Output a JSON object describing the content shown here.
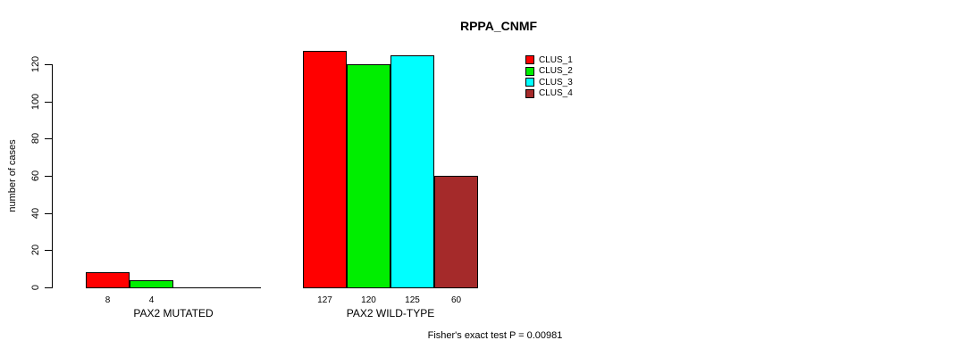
{
  "chart_data": {
    "type": "bar",
    "title": "RPPA_CNMF",
    "ylabel": "number of cases",
    "xlabel": "",
    "ylim": [
      0,
      120
    ],
    "yticks": [
      0,
      20,
      40,
      60,
      80,
      100,
      120
    ],
    "grid": false,
    "legend_position": "right",
    "series": [
      {
        "name": "CLUS_1",
        "color": "#FF0000"
      },
      {
        "name": "CLUS_2",
        "color": "#00EE00"
      },
      {
        "name": "CLUS_3",
        "color": "#00FFFF"
      },
      {
        "name": "CLUS_4",
        "color": "#A52A2A"
      }
    ],
    "groups": [
      {
        "label": "PAX2 MUTATED",
        "values": [
          8,
          4,
          0,
          0
        ],
        "bar_labels": [
          "8",
          "4",
          "",
          ""
        ]
      },
      {
        "label": "PAX2 WILD-TYPE",
        "values": [
          127,
          120,
          125,
          60
        ],
        "bar_labels": [
          "127",
          "120",
          "125",
          "60"
        ]
      }
    ],
    "annotation": "Fisher's exact test P = 0.00981"
  }
}
